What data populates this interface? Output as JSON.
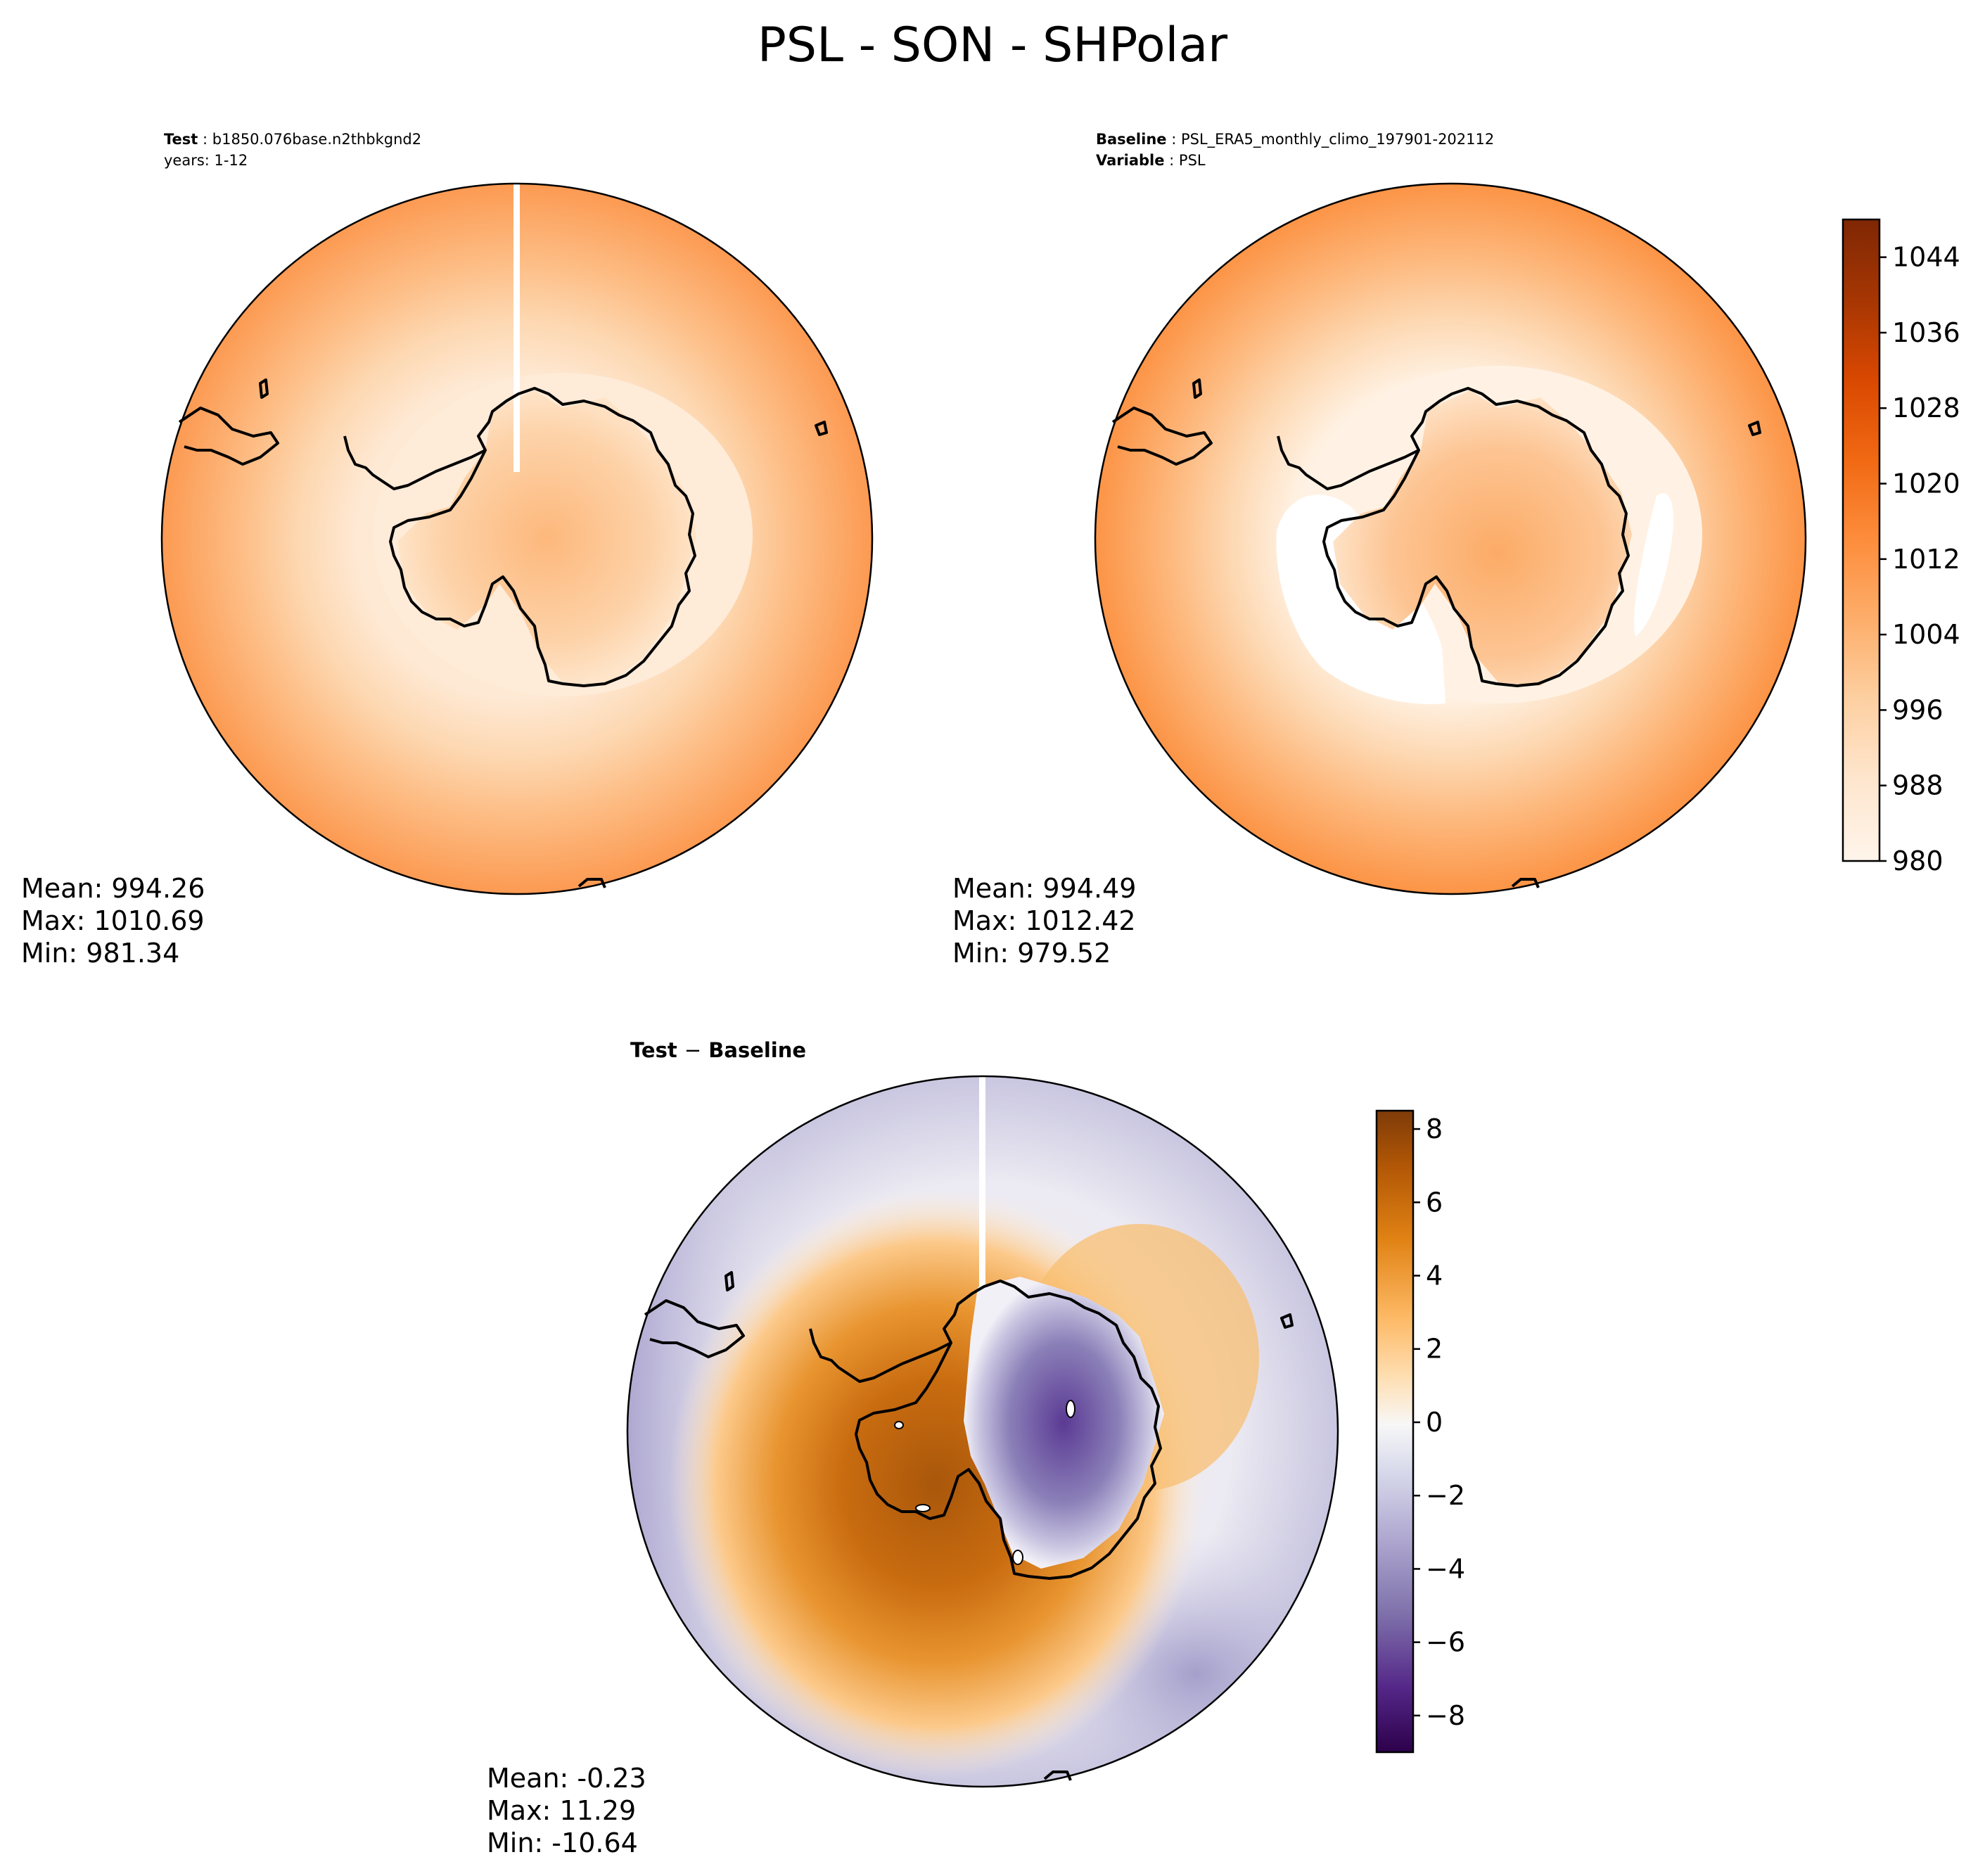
{
  "figure": {
    "title": "PSL - SON - SHPolar"
  },
  "panels": {
    "test": {
      "header_key": "Test",
      "header_value": "b1850.076base.n2thbkgnd2",
      "years_line": "years: 1-12",
      "stats": {
        "mean": "Mean: 994.26",
        "max": "Max: 1010.69",
        "min": "Min: 981.34"
      }
    },
    "baseline": {
      "header_key": "Baseline",
      "header_value": "PSL_ERA5_monthly_climo_197901-202112",
      "variable_key": "Variable",
      "variable_value": "PSL",
      "stats": {
        "mean": "Mean: 994.49",
        "max": "Max: 1012.42",
        "min": "Min: 979.52"
      }
    },
    "diff": {
      "title_left": "Test",
      "title_op": "−",
      "title_right": "Baseline",
      "stats": {
        "mean": "Mean: -0.23",
        "max": "Max: 11.29",
        "min": "Min: -10.64"
      }
    }
  },
  "colors": {
    "oranges": [
      "#fff5eb",
      "#fee6ce",
      "#fdd0a2",
      "#fdae6b",
      "#fd8d3c",
      "#f16913",
      "#d94801",
      "#a63603",
      "#7f2704"
    ],
    "puor": [
      "#2d004b",
      "#542788",
      "#8073ac",
      "#b2abd2",
      "#d8daeb",
      "#f7f7f7",
      "#fee0b6",
      "#fdb863",
      "#e08214",
      "#b35806",
      "#7f3b08"
    ],
    "coastline": "#000000"
  },
  "chart_data": [
    {
      "type": "heatmap",
      "name": "test",
      "projection": "south-polar-stereographic",
      "colorbar_range": [
        980,
        1048
      ],
      "colorbar_ticks": [
        "980",
        "988",
        "996",
        "1004",
        "1012",
        "1020",
        "1028",
        "1036",
        "1044"
      ],
      "mean": 994.26,
      "max": 1010.69,
      "min": 981.34
    },
    {
      "type": "heatmap",
      "name": "baseline",
      "projection": "south-polar-stereographic",
      "colorbar_range": [
        980,
        1048
      ],
      "colorbar_ticks": [
        "980",
        "988",
        "996",
        "1004",
        "1012",
        "1020",
        "1028",
        "1036",
        "1044"
      ],
      "mean": 994.49,
      "max": 1012.42,
      "min": 979.52
    },
    {
      "type": "heatmap",
      "name": "diff",
      "projection": "south-polar-stereographic",
      "colorbar_range": [
        -9,
        8.5
      ],
      "colorbar_ticks": [
        "8",
        "6",
        "4",
        "2",
        "0",
        "−2",
        "−4",
        "−6",
        "−8"
      ],
      "colorbar_tick_values": [
        8,
        6,
        4,
        2,
        0,
        -2,
        -4,
        -6,
        -8
      ],
      "mean": -0.23,
      "max": 11.29,
      "min": -10.64
    }
  ]
}
